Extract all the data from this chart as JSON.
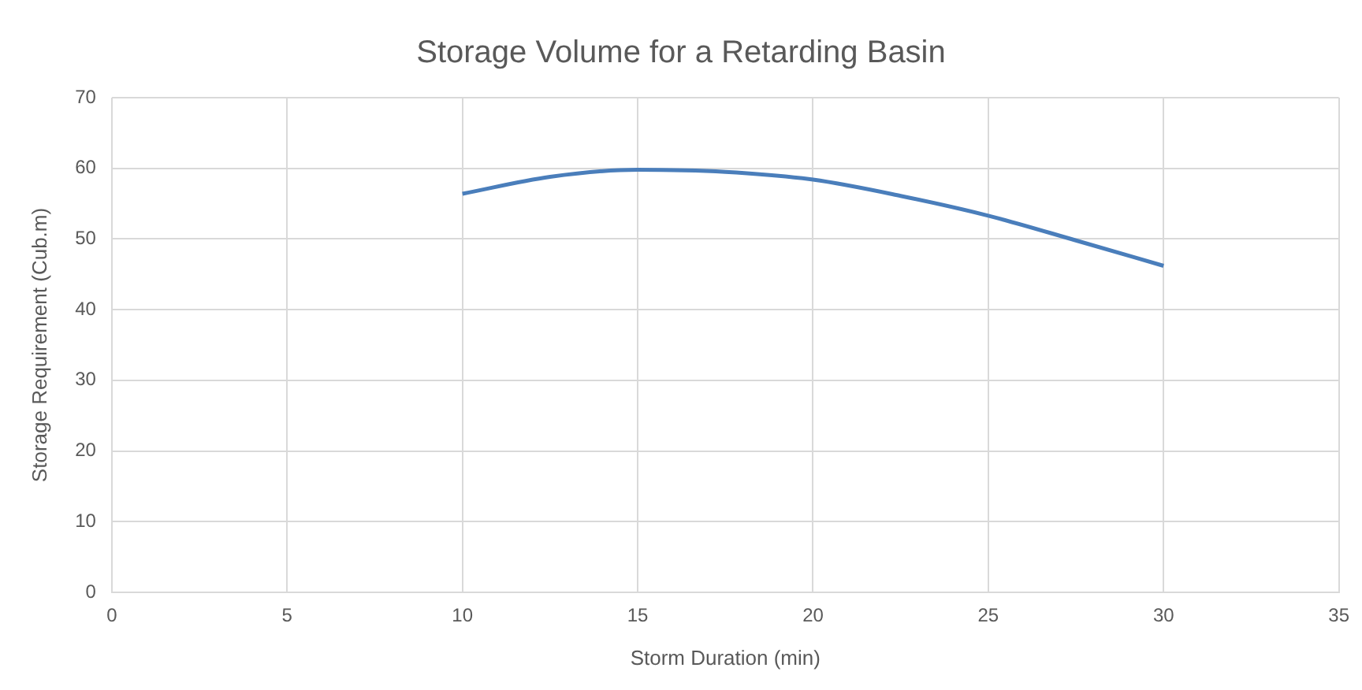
{
  "chart_data": {
    "type": "line",
    "title": "Storage Volume for a Retarding Basin",
    "xlabel": "Storm Duration (min)",
    "ylabel": "Storage Requirement (Cub.m)",
    "x": [
      10,
      12.5,
      15,
      17.5,
      20,
      22.5,
      25,
      27.5,
      30
    ],
    "series": [
      {
        "color": "#4a7ebb",
        "values": [
          56.4,
          58.8,
          59.8,
          59.5,
          58.4,
          56.1,
          53.3,
          49.8,
          46.2
        ]
      }
    ],
    "xlim": [
      0,
      35
    ],
    "xticks": [
      0,
      5,
      10,
      15,
      20,
      25,
      30,
      35
    ],
    "ylim": [
      0,
      70
    ],
    "yticks": [
      0,
      10,
      20,
      30,
      40,
      50,
      60,
      70
    ],
    "grid": true,
    "legend": false,
    "marker": "none",
    "line_style": "solid"
  }
}
